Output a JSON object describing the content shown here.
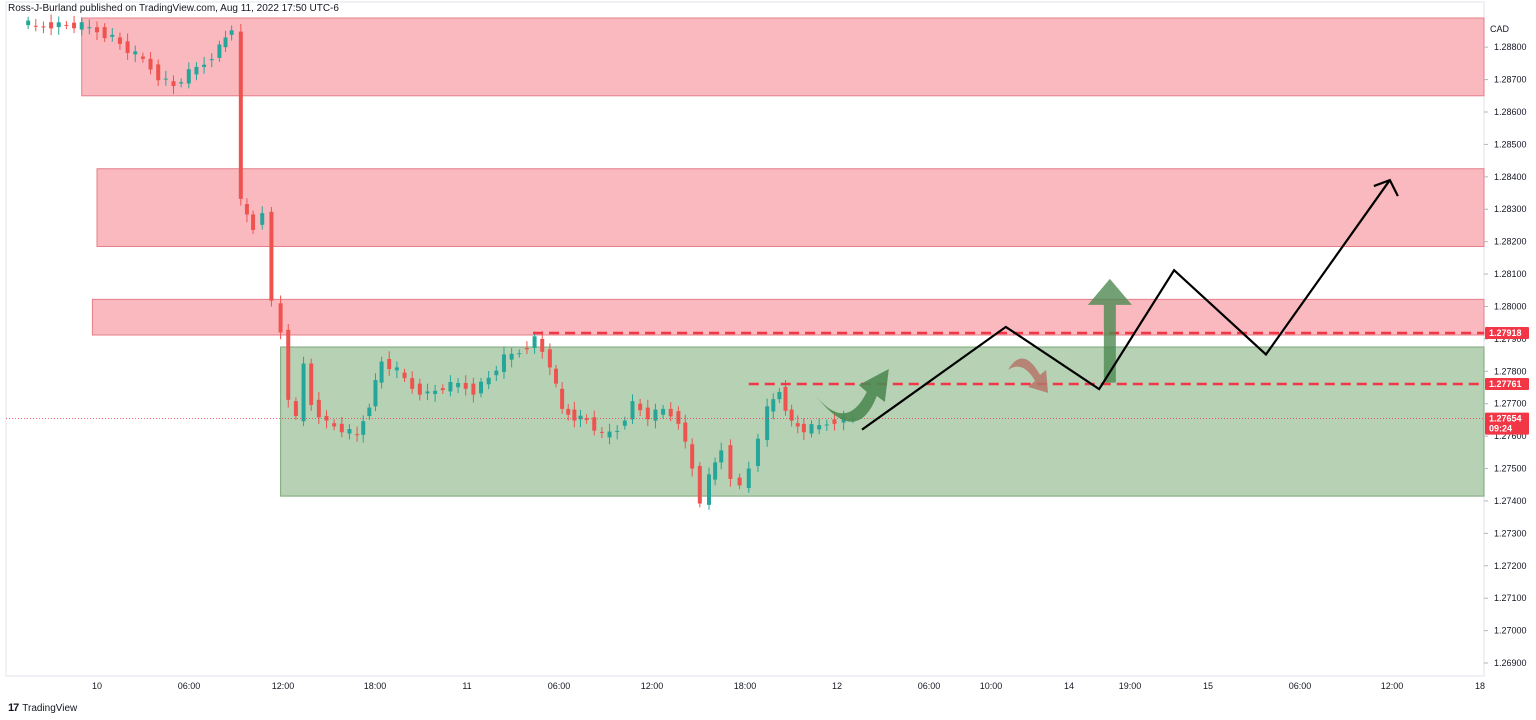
{
  "header": {
    "text": "Ross-J-Burland published on TradingView.com, Aug 11, 2022 17:50 UTC-6"
  },
  "footer": {
    "logo": "17",
    "brand": "TradingView"
  },
  "colors": {
    "supply_zone": "#f7a1aa",
    "demand_zone": "#9ec29a",
    "bull_candle": "#26a69a",
    "bear_candle": "#ef5350",
    "marker_red": "#f23645",
    "arrow_green": "#4e8a52",
    "arrow_brown": "#b5776a",
    "projection": "#000000"
  },
  "chart_data": {
    "type": "candlestick",
    "currency": "CAD",
    "ylim": [
      1.2686,
      1.2889
    ],
    "y_ticks": [
      "1.28800",
      "1.28700",
      "1.28600",
      "1.28500",
      "1.28400",
      "1.28300",
      "1.28200",
      "1.28100",
      "1.28000",
      "1.27900",
      "1.27800",
      "1.27700",
      "1.27600",
      "1.27500",
      "1.27400",
      "1.27300",
      "1.27200",
      "1.27100",
      "1.27000",
      "1.26900"
    ],
    "x_labels": [
      "10",
      "06:00",
      "12:00",
      "18:00",
      "11",
      "06:00",
      "12:00",
      "18:00",
      "12",
      "06:00",
      "10:00",
      "14",
      "19:00",
      "15",
      "06:00",
      "12:00",
      "18"
    ],
    "price_labels": [
      {
        "value": 1.27918,
        "text": "1.27918"
      },
      {
        "value": 1.27761,
        "text": "1.27761"
      },
      {
        "value": 1.27654,
        "text": "1.27654",
        "countdown": "09:24"
      }
    ],
    "zones": [
      {
        "kind": "supply",
        "from_hour": -1,
        "to_hour": 198,
        "low": 1.2865,
        "high": 1.2889
      },
      {
        "kind": "supply",
        "from_hour": 0,
        "to_hour": 198,
        "low": 1.28185,
        "high": 1.28425
      },
      {
        "kind": "supply",
        "from_hour": -0.3,
        "to_hour": 198,
        "low": 1.27912,
        "high": 1.28022
      },
      {
        "kind": "demand",
        "from_hour": 12,
        "to_hour": 198,
        "low": 1.27415,
        "high": 1.27875
      }
    ],
    "resistance_lines": [
      {
        "from_hour": 28.5,
        "to_hour": 198,
        "value": 1.27918
      },
      {
        "from_hour": 42.6,
        "to_hour": 198,
        "value": 1.27761
      }
    ],
    "projection_path": [
      {
        "hour": 50,
        "price": 1.2762
      },
      {
        "hour": 59.4,
        "price": 1.27937
      },
      {
        "hour": 65.5,
        "price": 1.27745
      },
      {
        "hour": 70.4,
        "price": 1.28112
      },
      {
        "hour": 76.4,
        "price": 1.27852
      },
      {
        "hour": 84.5,
        "price": 1.2839
      }
    ],
    "close_series": [
      {
        "hour": -5.0,
        "close": 1.2888
      },
      {
        "hour": -4.0,
        "close": 1.2886
      },
      {
        "hour": -3.0,
        "close": 1.2887
      },
      {
        "hour": -1.0,
        "close": 1.28865
      },
      {
        "hour": 0.0,
        "close": 1.2885
      },
      {
        "hour": 1.0,
        "close": 1.2883
      },
      {
        "hour": 2.0,
        "close": 1.2879
      },
      {
        "hour": 3.0,
        "close": 1.2876
      },
      {
        "hour": 4.0,
        "close": 1.2871
      },
      {
        "hour": 5.0,
        "close": 1.2868
      },
      {
        "hour": 6.0,
        "close": 1.2872
      },
      {
        "hour": 7.0,
        "close": 1.2875
      },
      {
        "hour": 8.0,
        "close": 1.288
      },
      {
        "hour": 8.8,
        "close": 1.2886
      },
      {
        "hour": 9.4,
        "close": 1.2832
      },
      {
        "hour": 10.2,
        "close": 1.2824
      },
      {
        "hour": 10.8,
        "close": 1.283
      },
      {
        "hour": 11.4,
        "close": 1.2801
      },
      {
        "hour": 12.0,
        "close": 1.2792
      },
      {
        "hour": 12.5,
        "close": 1.2772
      },
      {
        "hour": 13.0,
        "close": 1.2765
      },
      {
        "hour": 13.5,
        "close": 1.2782
      },
      {
        "hour": 14.0,
        "close": 1.277
      },
      {
        "hour": 15.0,
        "close": 1.2764
      },
      {
        "hour": 16.0,
        "close": 1.2762
      },
      {
        "hour": 17.0,
        "close": 1.276
      },
      {
        "hour": 17.8,
        "close": 1.277
      },
      {
        "hour": 18.6,
        "close": 1.2783
      },
      {
        "hour": 19.6,
        "close": 1.278
      },
      {
        "hour": 20.6,
        "close": 1.2775
      },
      {
        "hour": 21.6,
        "close": 1.2773
      },
      {
        "hour": 22.6,
        "close": 1.2775
      },
      {
        "hour": 23.6,
        "close": 1.2776
      },
      {
        "hour": 24.6,
        "close": 1.2774
      },
      {
        "hour": 25.6,
        "close": 1.2778
      },
      {
        "hour": 26.6,
        "close": 1.2784
      },
      {
        "hour": 27.6,
        "close": 1.2786
      },
      {
        "hour": 28.6,
        "close": 1.279
      },
      {
        "hour": 29.6,
        "close": 1.2782
      },
      {
        "hour": 30.4,
        "close": 1.2768
      },
      {
        "hour": 31.2,
        "close": 1.2766
      },
      {
        "hour": 32.0,
        "close": 1.2765
      },
      {
        "hour": 33.0,
        "close": 1.276
      },
      {
        "hour": 34.0,
        "close": 1.2762
      },
      {
        "hour": 35.0,
        "close": 1.277
      },
      {
        "hour": 36.0,
        "close": 1.2766
      },
      {
        "hour": 37.0,
        "close": 1.2768
      },
      {
        "hour": 38.0,
        "close": 1.2765
      },
      {
        "hour": 38.9,
        "close": 1.275
      },
      {
        "hour": 39.4,
        "close": 1.274
      },
      {
        "hour": 40.0,
        "close": 1.2747
      },
      {
        "hour": 40.8,
        "close": 1.2756
      },
      {
        "hour": 41.4,
        "close": 1.2748
      },
      {
        "hour": 42.0,
        "close": 1.2744
      },
      {
        "hour": 42.6,
        "close": 1.275
      },
      {
        "hour": 43.2,
        "close": 1.276
      },
      {
        "hour": 43.8,
        "close": 1.2768
      },
      {
        "hour": 44.6,
        "close": 1.2774
      },
      {
        "hour": 45.4,
        "close": 1.2764
      },
      {
        "hour": 46.2,
        "close": 1.2762
      },
      {
        "hour": 47.2,
        "close": 1.2763
      },
      {
        "hour": 48.2,
        "close": 1.2765
      },
      {
        "hour": 49.4,
        "close": 1.27654
      }
    ]
  }
}
